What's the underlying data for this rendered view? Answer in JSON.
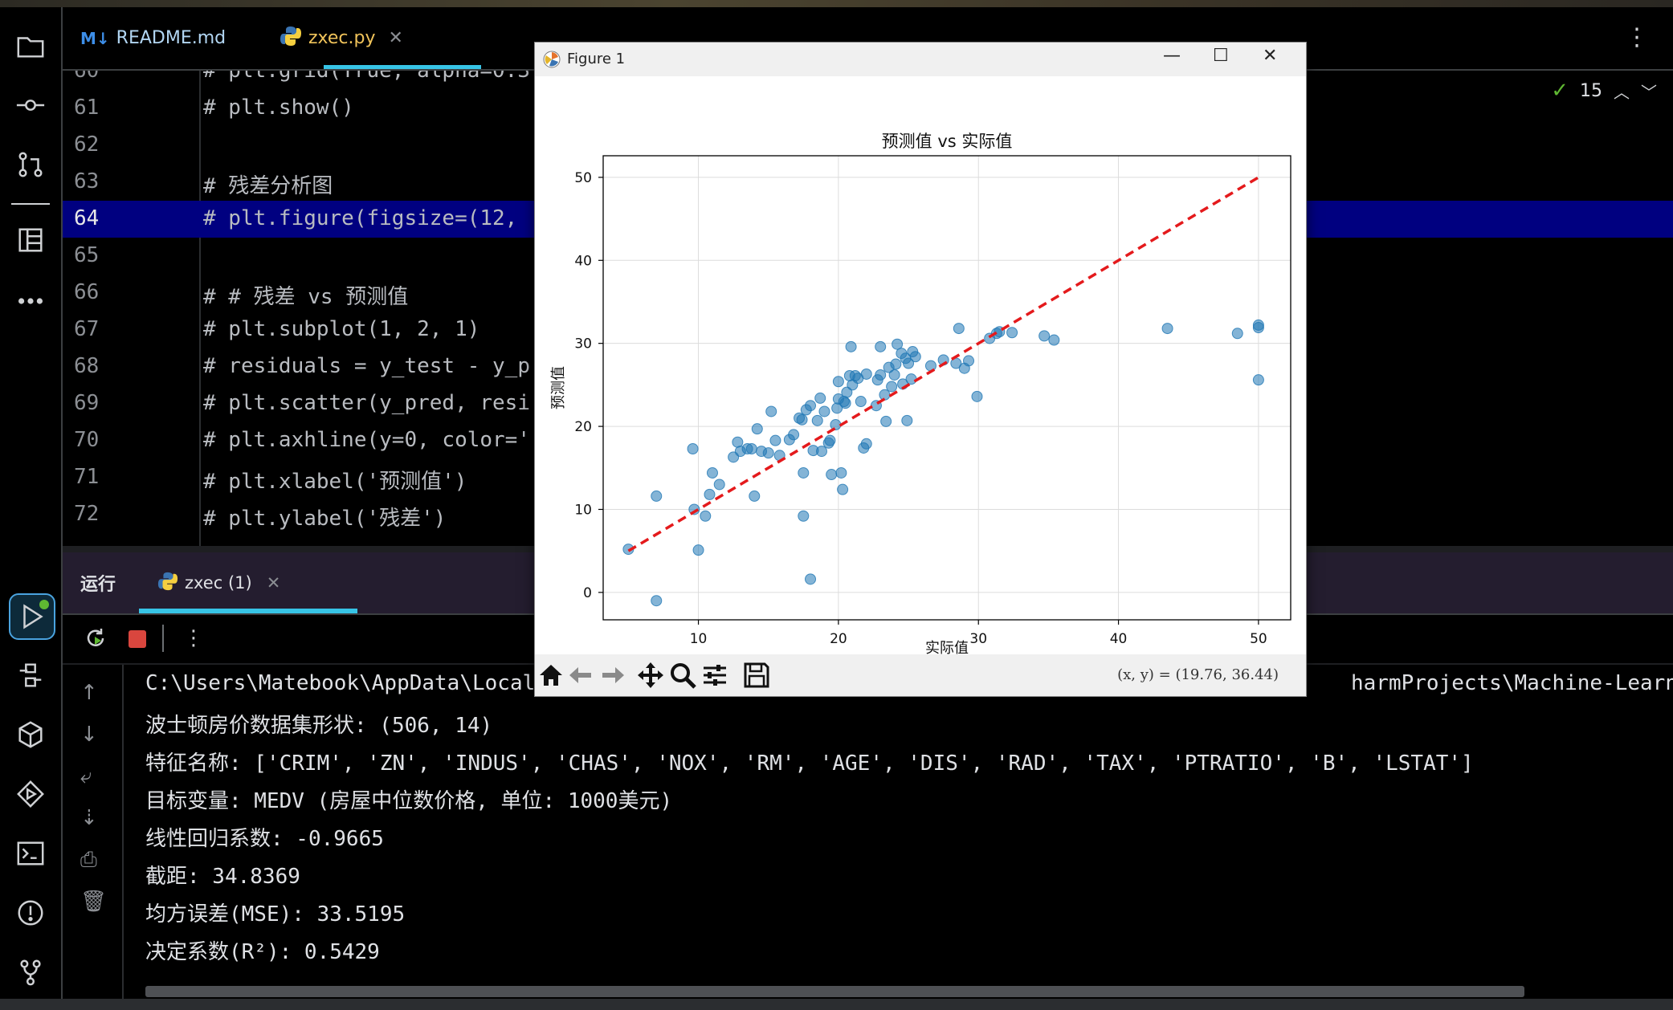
{
  "editor": {
    "tabs": [
      {
        "label": "README.md",
        "icon": "markdown-icon"
      },
      {
        "label": "zxec.py",
        "icon": "python-icon"
      }
    ],
    "inspection_count": "15",
    "lines": [
      {
        "num": "60",
        "code": "# plt.grid(True, alpha=0.3"
      },
      {
        "num": "61",
        "code": "# plt.show()"
      },
      {
        "num": "62",
        "code": ""
      },
      {
        "num": "63",
        "code": "# 残差分析图"
      },
      {
        "num": "64",
        "code": "# plt.figure(figsize=(12,"
      },
      {
        "num": "65",
        "code": ""
      },
      {
        "num": "66",
        "code": "# # 残差 vs 预测值"
      },
      {
        "num": "67",
        "code": "# plt.subplot(1, 2, 1)"
      },
      {
        "num": "68",
        "code": "# residuals = y_test - y_p"
      },
      {
        "num": "69",
        "code": "# plt.scatter(y_pred, resi"
      },
      {
        "num": "70",
        "code": "# plt.axhline(y=0, color='"
      },
      {
        "num": "71",
        "code": "# plt.xlabel('预测值')"
      },
      {
        "num": "72",
        "code": "# plt.ylabel('残差')"
      }
    ]
  },
  "run": {
    "title": "运行",
    "tab_label": "zxec (1)",
    "console_lines": [
      "C:\\Users\\Matebook\\AppData\\Local",
      "波士顿房价数据集形状: (506, 14)",
      "特征名称: ['CRIM', 'ZN', 'INDUS', 'CHAS', 'NOX', 'RM', 'AGE', 'DIS', 'RAD', 'TAX', 'PTRATIO', 'B', 'LSTAT']",
      "目标变量: MEDV (房屋中位数价格, 单位: 1000美元)",
      "线性回归系数: -0.9665",
      "截距: 34.8369",
      "均方误差(MSE): 33.5195",
      "决定系数(R²): 0.5429"
    ],
    "console_line0_right": "harmProjects\\Machine-Learning"
  },
  "figure": {
    "window_title": "Figure 1",
    "coords": "(x, y) = (19.76, 36.44)"
  },
  "chart_data": {
    "type": "scatter",
    "title": "预测值 vs 实际值",
    "xlabel": "实际值",
    "ylabel": "预测值",
    "xlim": [
      3.2,
      52.3
    ],
    "ylim": [
      -3.3,
      52.6
    ],
    "xticks": [
      10,
      20,
      30,
      40,
      50
    ],
    "yticks": [
      0,
      10,
      20,
      30,
      40,
      50
    ],
    "grid": true,
    "point_color": "#1f77b4",
    "line_color": "#e41a1c",
    "reference_line": {
      "x": [
        5,
        50
      ],
      "y": [
        5,
        50
      ]
    },
    "points": [
      [
        5,
        5.2
      ],
      [
        7,
        11.6
      ],
      [
        7,
        -1
      ],
      [
        9.6,
        17.3
      ],
      [
        9.7,
        10
      ],
      [
        10,
        5.1
      ],
      [
        10.5,
        9.2
      ],
      [
        10.8,
        11.8
      ],
      [
        11,
        14.4
      ],
      [
        11.5,
        13
      ],
      [
        12.5,
        16.3
      ],
      [
        12.8,
        18.1
      ],
      [
        13,
        17
      ],
      [
        13.5,
        17.3
      ],
      [
        13.8,
        17.3
      ],
      [
        14,
        11.6
      ],
      [
        14.2,
        19.7
      ],
      [
        14.5,
        17
      ],
      [
        15,
        16.8
      ],
      [
        15.2,
        21.8
      ],
      [
        15.5,
        18.3
      ],
      [
        15.8,
        16.5
      ],
      [
        16.5,
        18.4
      ],
      [
        16.8,
        19
      ],
      [
        17.2,
        21
      ],
      [
        17.4,
        20.8
      ],
      [
        17.5,
        14.4
      ],
      [
        17.5,
        9.2
      ],
      [
        17.7,
        22
      ],
      [
        18,
        22.5
      ],
      [
        18,
        1.6
      ],
      [
        18.2,
        17.1
      ],
      [
        18.5,
        20.7
      ],
      [
        18.7,
        23.4
      ],
      [
        18.8,
        17
      ],
      [
        19,
        21.8
      ],
      [
        19.3,
        18
      ],
      [
        19.4,
        18.3
      ],
      [
        19.5,
        14.2
      ],
      [
        19.8,
        20.2
      ],
      [
        19.9,
        22.2
      ],
      [
        20,
        23.3
      ],
      [
        20,
        25.4
      ],
      [
        20.2,
        14.4
      ],
      [
        20.3,
        12.4
      ],
      [
        20.4,
        23
      ],
      [
        20.5,
        22.8
      ],
      [
        20.6,
        24.1
      ],
      [
        20.8,
        26.1
      ],
      [
        20.9,
        29.6
      ],
      [
        21,
        25
      ],
      [
        21.2,
        26.1
      ],
      [
        21.4,
        25.8
      ],
      [
        21.6,
        23
      ],
      [
        21.8,
        17.4
      ],
      [
        22,
        17.9
      ],
      [
        22,
        26.3
      ],
      [
        22.7,
        22.5
      ],
      [
        22.8,
        25.6
      ],
      [
        23,
        29.6
      ],
      [
        23,
        26.2
      ],
      [
        23.3,
        23.8
      ],
      [
        23.4,
        20.6
      ],
      [
        23.6,
        27.1
      ],
      [
        23.8,
        24.8
      ],
      [
        24,
        26.2
      ],
      [
        24.1,
        27.5
      ],
      [
        24.2,
        29.9
      ],
      [
        24.5,
        28.8
      ],
      [
        24.6,
        25.1
      ],
      [
        24.8,
        28.2
      ],
      [
        24.9,
        20.7
      ],
      [
        25,
        27.6
      ],
      [
        25.2,
        25.7
      ],
      [
        25.3,
        29
      ],
      [
        25.5,
        28.4
      ],
      [
        26.6,
        27.3
      ],
      [
        27.5,
        28
      ],
      [
        28.4,
        27.6
      ],
      [
        28.6,
        31.8
      ],
      [
        29,
        27
      ],
      [
        29.3,
        27.9
      ],
      [
        29.9,
        23.6
      ],
      [
        30.8,
        30.6
      ],
      [
        31.3,
        31.2
      ],
      [
        31.5,
        31.4
      ],
      [
        32.4,
        31.3
      ],
      [
        34.7,
        30.9
      ],
      [
        35.4,
        30.4
      ],
      [
        43.5,
        31.8
      ],
      [
        48.5,
        31.2
      ],
      [
        50,
        31.9
      ],
      [
        50,
        32.2
      ],
      [
        50,
        25.6
      ]
    ]
  },
  "colors": {
    "selection": "#000080",
    "accent": "#37c4e6",
    "stop": "#d9463e"
  }
}
